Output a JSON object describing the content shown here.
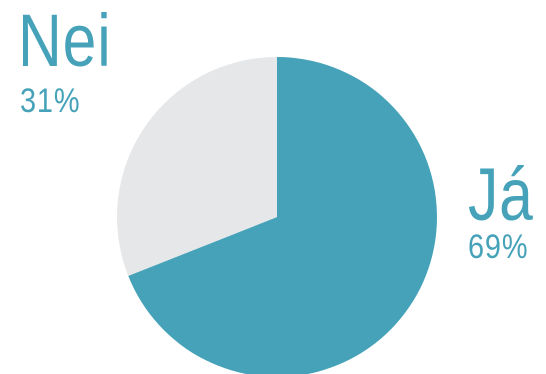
{
  "chart_data": {
    "type": "pie",
    "slices": [
      {
        "label": "Já",
        "value": 69,
        "value_label": "69%",
        "color": "#46a2b9"
      },
      {
        "label": "Nei",
        "value": 31,
        "value_label": "31%",
        "color": "#e6e7e9"
      }
    ],
    "title": "",
    "legend": "none"
  }
}
